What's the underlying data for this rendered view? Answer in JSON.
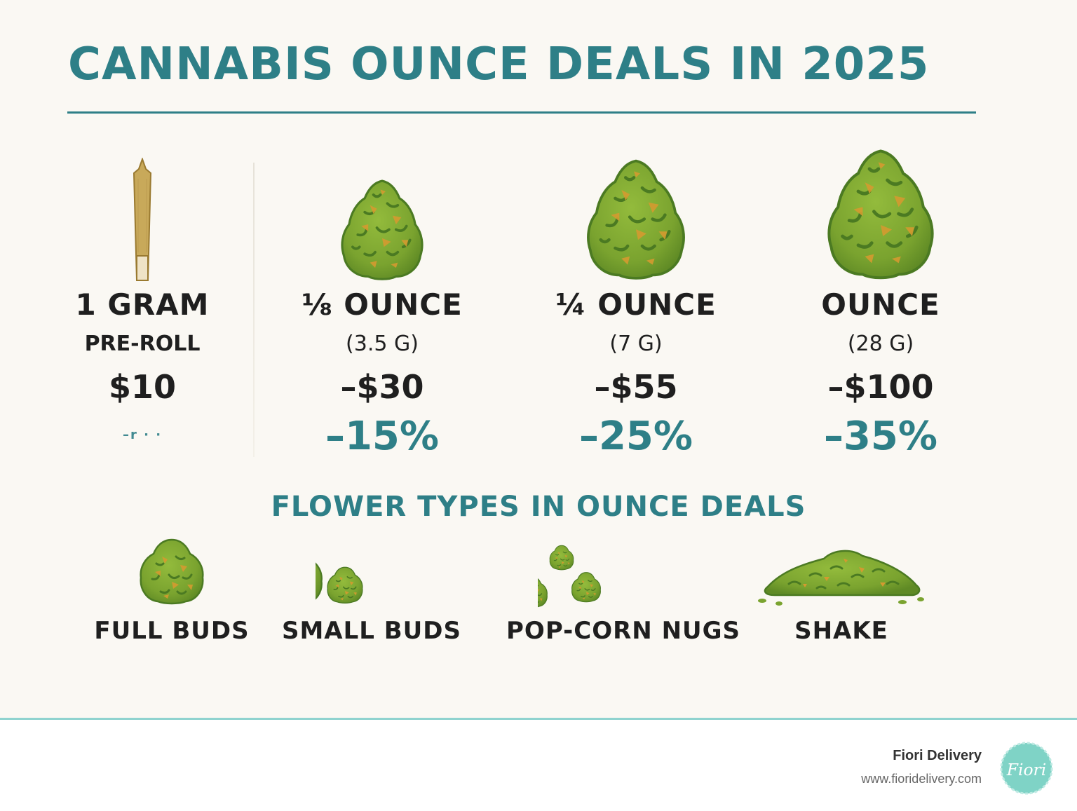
{
  "header": {
    "title": "CANNABIS OUNCE DEALS IN 2025"
  },
  "tiers": [
    {
      "name": "1 GRAM",
      "sub": "PRE-ROLL",
      "price": "$10",
      "discount": "–r · ·",
      "icon": "pre-roll-icon"
    },
    {
      "name": "⅛ OUNCE",
      "sub": "(3.5 G)",
      "price": "–$30",
      "discount": "–15%",
      "icon": "eighth-bud-icon"
    },
    {
      "name": "¼ OUNCE",
      "sub": "(7 G)",
      "price": "–$55",
      "discount": "–25%",
      "icon": "quarter-bud-icon"
    },
    {
      "name": "OUNCE",
      "sub": "(28 G)",
      "price": "–$100",
      "discount": "–35%",
      "icon": "ounce-bud-icon"
    }
  ],
  "flower_types": {
    "heading": "FLOWER TYPES IN OUNCE DEALS",
    "items": [
      {
        "label": "FULL BUDS",
        "icon": "full-bud-icon"
      },
      {
        "label": "SMALL BUDS",
        "icon": "small-buds-icon"
      },
      {
        "label": "POP-CORN NUGS",
        "icon": "popcorn-nugs-icon"
      },
      {
        "label": "SHAKE",
        "icon": "shake-icon"
      }
    ]
  },
  "footer": {
    "brand": "Fiori Delivery",
    "url": "www.fioridelivery.com",
    "logo_text": "Fiori"
  },
  "colors": {
    "accent": "#2e7f87",
    "bud_green": "#7da531",
    "bud_dark": "#4b7a22",
    "bud_orange": "#d49a30",
    "background": "#faf8f3",
    "footer_rule": "#8fd3cf"
  }
}
